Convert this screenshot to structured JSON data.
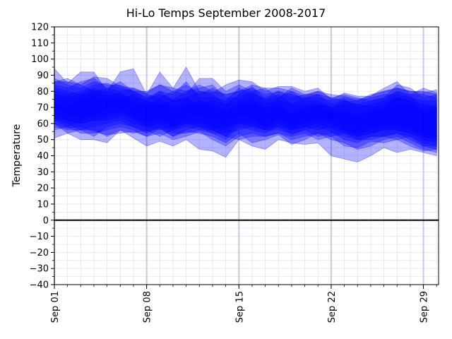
{
  "chart_data": {
    "type": "area",
    "title": "Hi-Lo Temps September 2008-2017",
    "xlabel": "",
    "ylabel": "Temperature",
    "ylim": [
      -40,
      120
    ],
    "yticks": [
      -40,
      -30,
      -20,
      -10,
      0,
      10,
      20,
      30,
      40,
      50,
      60,
      70,
      80,
      90,
      100,
      110,
      120
    ],
    "xlim": [
      "2017-09-01",
      "2017-09-30"
    ],
    "xticks": [
      "Sep 01",
      "Sep 08",
      "Sep 15",
      "Sep 22",
      "Sep 29"
    ],
    "zero_line": 0,
    "grid": true,
    "fill_color": "#0000ff",
    "line_color": "#0000ff",
    "zero_line_color": "#000000",
    "days": [
      1,
      2,
      3,
      4,
      5,
      6,
      7,
      8,
      9,
      10,
      11,
      12,
      13,
      14,
      15,
      16,
      17,
      18,
      19,
      20,
      21,
      22,
      23,
      24,
      25,
      26,
      27,
      28,
      29,
      30
    ],
    "series": [
      {
        "high": [
          94,
          85,
          92,
          92,
          80,
          92,
          94,
          78,
          92,
          82,
          95,
          80,
          79,
          84,
          87,
          86,
          80,
          83,
          83,
          80,
          82,
          75,
          79,
          77,
          77,
          82,
          86,
          78,
          82,
          79
        ],
        "low": [
          51,
          54,
          50,
          50,
          48,
          56,
          51,
          46,
          49,
          46,
          50,
          44,
          43,
          39,
          50,
          46,
          44,
          50,
          48,
          47,
          48,
          40,
          38,
          36,
          40,
          45,
          42,
          44,
          42,
          40
        ]
      },
      {
        "high": [
          86,
          88,
          84,
          89,
          88,
          83,
          82,
          79,
          84,
          80,
          78,
          88,
          88,
          80,
          84,
          80,
          82,
          82,
          80,
          77,
          80,
          78,
          77,
          75,
          77,
          80,
          82,
          80,
          79,
          81
        ],
        "low": [
          60,
          57,
          58,
          55,
          53,
          54,
          55,
          52,
          57,
          52,
          55,
          54,
          52,
          48,
          54,
          48,
          50,
          53,
          47,
          50,
          54,
          52,
          46,
          45,
          49,
          48,
          50,
          46,
          43,
          44
        ]
      },
      {
        "high": [
          80,
          78,
          80,
          84,
          85,
          82,
          80,
          76,
          80,
          74,
          76,
          80,
          78,
          72,
          78,
          83,
          75,
          78,
          72,
          76,
          78,
          72,
          75,
          70,
          72,
          74,
          80,
          77,
          70,
          72
        ],
        "low": [
          63,
          60,
          56,
          58,
          60,
          62,
          58,
          55,
          57,
          52,
          56,
          58,
          54,
          50,
          58,
          56,
          54,
          58,
          53,
          56,
          58,
          55,
          50,
          48,
          52,
          52,
          54,
          50,
          46,
          46
        ]
      },
      {
        "high": [
          76,
          74,
          76,
          79,
          77,
          79,
          74,
          72,
          75,
          70,
          72,
          74,
          72,
          68,
          72,
          74,
          70,
          72,
          66,
          70,
          72,
          68,
          68,
          66,
          68,
          70,
          76,
          74,
          68,
          70
        ],
        "low": [
          66,
          62,
          60,
          62,
          64,
          66,
          63,
          58,
          60,
          56,
          60,
          60,
          56,
          52,
          60,
          60,
          56,
          60,
          56,
          58,
          60,
          57,
          54,
          52,
          54,
          56,
          56,
          54,
          50,
          48
        ]
      },
      {
        "high": [
          88,
          84,
          82,
          86,
          84,
          84,
          80,
          76,
          78,
          75,
          80,
          82,
          84,
          76,
          76,
          80,
          74,
          76,
          80,
          74,
          74,
          70,
          72,
          72,
          74,
          76,
          84,
          82,
          76,
          78
        ],
        "low": [
          56,
          58,
          54,
          54,
          56,
          58,
          56,
          52,
          54,
          50,
          52,
          55,
          50,
          46,
          52,
          54,
          52,
          54,
          50,
          52,
          54,
          50,
          48,
          44,
          46,
          50,
          52,
          48,
          44,
          42
        ]
      },
      {
        "high": [
          72,
          70,
          74,
          76,
          74,
          76,
          72,
          70,
          72,
          68,
          70,
          72,
          70,
          66,
          70,
          72,
          68,
          70,
          66,
          68,
          70,
          66,
          66,
          64,
          66,
          68,
          72,
          72,
          66,
          68
        ],
        "low": [
          62,
          58,
          62,
          64,
          66,
          68,
          64,
          60,
          62,
          58,
          62,
          62,
          58,
          56,
          62,
          62,
          58,
          62,
          58,
          60,
          62,
          60,
          56,
          54,
          56,
          58,
          58,
          56,
          52,
          50
        ]
      },
      {
        "high": [
          82,
          80,
          78,
          80,
          80,
          78,
          76,
          74,
          80,
          78,
          86,
          76,
          76,
          74,
          82,
          78,
          76,
          80,
          78,
          76,
          76,
          74,
          76,
          74,
          76,
          78,
          78,
          76,
          74,
          74
        ],
        "low": [
          58,
          56,
          56,
          52,
          58,
          60,
          58,
          54,
          58,
          54,
          54,
          56,
          54,
          54,
          56,
          58,
          56,
          56,
          54,
          56,
          52,
          54,
          52,
          50,
          50,
          52,
          50,
          52,
          48,
          46
        ]
      },
      {
        "high": [
          84,
          82,
          86,
          88,
          82,
          80,
          82,
          78,
          76,
          80,
          84,
          78,
          82,
          78,
          80,
          82,
          78,
          80,
          76,
          78,
          78,
          76,
          78,
          76,
          74,
          76,
          80,
          78,
          78,
          76
        ],
        "low": [
          64,
          62,
          60,
          62,
          62,
          64,
          60,
          58,
          56,
          58,
          60,
          58,
          56,
          58,
          60,
          58,
          56,
          58,
          56,
          58,
          56,
          58,
          56,
          52,
          54,
          56,
          56,
          54,
          52,
          50
        ]
      },
      {
        "high": [
          78,
          76,
          78,
          82,
          78,
          74,
          78,
          74,
          72,
          74,
          76,
          72,
          74,
          72,
          74,
          76,
          72,
          74,
          72,
          72,
          72,
          70,
          74,
          72,
          70,
          72,
          76,
          74,
          72,
          70
        ],
        "low": [
          70,
          66,
          64,
          66,
          70,
          70,
          66,
          62,
          64,
          60,
          64,
          66,
          62,
          60,
          66,
          64,
          60,
          64,
          60,
          62,
          64,
          62,
          60,
          56,
          58,
          60,
          60,
          58,
          54,
          52
        ]
      },
      {
        "high": [
          86,
          86,
          84,
          80,
          82,
          86,
          80,
          80,
          84,
          82,
          80,
          84,
          80,
          78,
          80,
          84,
          82,
          76,
          82,
          78,
          80,
          76,
          74,
          74,
          78,
          80,
          82,
          80,
          80,
          78
        ],
        "low": [
          60,
          54,
          56,
          56,
          52,
          56,
          54,
          56,
          52,
          56,
          58,
          56,
          56,
          52,
          50,
          52,
          52,
          54,
          52,
          54,
          50,
          52,
          54,
          50,
          52,
          52,
          54,
          52,
          46,
          44
        ]
      }
    ]
  }
}
